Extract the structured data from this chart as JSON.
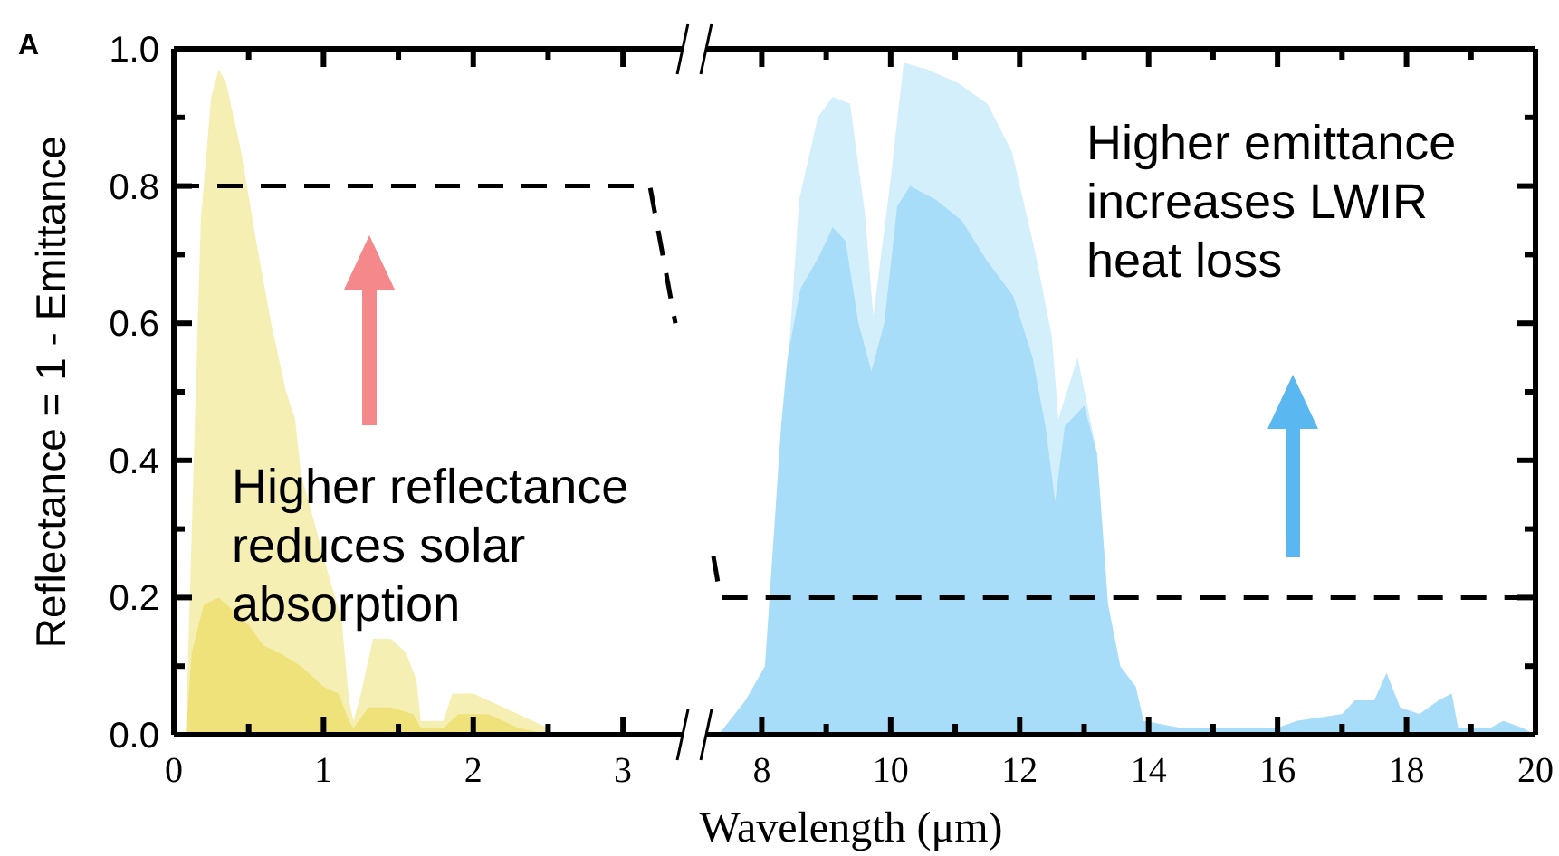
{
  "chart_data": [
    {
      "type": "area",
      "ylabel": "Reflectance = 1 - Emittance",
      "xlim": [
        0,
        3.35
      ],
      "ylim": [
        0,
        1
      ],
      "xticks": [
        0,
        {
          "value": 0.5,
          "label": null
        },
        1,
        {
          "value": 1.5,
          "label": null
        },
        2,
        {
          "value": 2.5,
          "label": null
        },
        3
      ],
      "yticks": [
        {
          "value": 0,
          "label": "0.0"
        },
        {
          "value": 0.1,
          "label": null
        },
        0.2,
        {
          "value": 0.3,
          "label": null
        },
        0.4,
        {
          "value": 0.5,
          "label": null
        },
        0.6,
        {
          "value": 0.7,
          "label": null
        },
        0.8,
        {
          "value": 0.9,
          "label": null
        },
        {
          "value": 1,
          "label": "1.0"
        }
      ],
      "grid": false,
      "annotations": [
        "A",
        "Higher reflectance reduces solar absorption"
      ],
      "series": [
        {
          "color": "#f6efb4",
          "x": [
            0.08,
            0.12,
            0.18,
            0.25,
            0.3,
            0.35,
            0.45,
            0.55,
            0.65,
            0.75,
            0.81,
            0.85,
            0.95,
            1.05,
            1.12,
            1.17,
            1.2,
            1.25,
            1.33,
            1.45,
            1.55,
            1.62,
            1.65,
            1.8,
            1.86,
            2.0,
            2.1,
            2.3,
            2.5,
            2.52
          ],
          "values": [
            0,
            0.3,
            0.75,
            0.93,
            0.97,
            0.95,
            0.85,
            0.72,
            0.6,
            0.5,
            0.46,
            0.38,
            0.3,
            0.22,
            0.17,
            0.05,
            0.02,
            0.06,
            0.14,
            0.14,
            0.12,
            0.08,
            0.02,
            0.02,
            0.06,
            0.06,
            0.05,
            0.03,
            0.01,
            0
          ]
        },
        {
          "color": "#efe27a",
          "x": [
            0.08,
            0.12,
            0.2,
            0.3,
            0.4,
            0.5,
            0.6,
            0.7,
            0.85,
            1.0,
            1.1,
            1.17,
            1.2,
            1.3,
            1.45,
            1.6,
            1.65,
            1.8,
            1.9,
            2.1,
            2.3,
            2.52
          ],
          "values": [
            0,
            0.12,
            0.19,
            0.2,
            0.18,
            0.16,
            0.13,
            0.12,
            0.1,
            0.07,
            0.06,
            0.02,
            0.01,
            0.04,
            0.04,
            0.03,
            0.01,
            0.01,
            0.03,
            0.03,
            0.01,
            0
          ]
        },
        {
          "type": "line",
          "color": "#000000",
          "line_style": "dashed",
          "x": [
            0,
            3.18,
            3.35
          ],
          "values": [
            0.8,
            0.8,
            0.6
          ]
        }
      ]
    },
    {
      "type": "area",
      "xlabel": "Wavelength (μm)",
      "xlim": [
        7.25,
        20
      ],
      "ylim": [
        0,
        1
      ],
      "tick_labels": "x",
      "xticks": [
        8,
        {
          "value": 9,
          "label": null
        },
        10,
        {
          "value": 11,
          "label": null
        },
        12,
        {
          "value": 13,
          "label": null
        },
        14,
        {
          "value": 15,
          "label": null
        },
        16,
        {
          "value": 17,
          "label": null
        },
        18,
        {
          "value": 19,
          "label": null
        },
        20
      ],
      "yticks": [
        {
          "value": 0,
          "label": null
        },
        {
          "value": 0.1,
          "label": null
        },
        {
          "value": 0.2,
          "label": null
        },
        {
          "value": 0.3,
          "label": null
        },
        {
          "value": 0.4,
          "label": null
        },
        {
          "value": 0.5,
          "label": null
        },
        {
          "value": 0.6,
          "label": null
        },
        {
          "value": 0.7,
          "label": null
        },
        {
          "value": 0.8,
          "label": null
        },
        {
          "value": 0.9,
          "label": null
        },
        {
          "value": 1,
          "label": null
        }
      ],
      "grid": false,
      "annotations": [
        "Higher emittance increases LWIR heat loss"
      ],
      "series": [
        {
          "color": "#d4effc",
          "x": [
            7.33,
            7.75,
            8.05,
            8.4,
            8.58,
            8.87,
            9.1,
            9.37,
            9.6,
            9.73,
            10.0,
            10.2,
            10.57,
            11.05,
            11.5,
            11.88,
            12.25,
            12.5,
            12.6,
            12.9,
            13.2,
            13.37,
            13.56,
            13.8,
            13.92,
            14.5,
            16.0,
            16.3,
            17.0,
            17.2,
            17.5,
            17.69,
            17.9,
            18.2,
            18.5,
            18.7,
            18.8,
            19.3,
            19.5,
            19.8,
            20
          ],
          "values": [
            0,
            0.05,
            0.1,
            0.53,
            0.78,
            0.9,
            0.93,
            0.92,
            0.76,
            0.61,
            0.81,
            0.98,
            0.97,
            0.95,
            0.92,
            0.85,
            0.7,
            0.58,
            0.46,
            0.55,
            0.41,
            0.19,
            0.1,
            0.07,
            0.02,
            0.01,
            0.01,
            0.02,
            0.03,
            0.05,
            0.05,
            0.09,
            0.04,
            0.03,
            0.05,
            0.06,
            0.01,
            0.01,
            0.02,
            0.01,
            0
          ]
        },
        {
          "color": "#a8ddf9",
          "x": [
            7.33,
            7.75,
            8.05,
            8.3,
            8.4,
            8.6,
            8.9,
            9.1,
            9.3,
            9.5,
            9.7,
            9.9,
            10.1,
            10.3,
            10.7,
            11.1,
            11.5,
            11.9,
            12.2,
            12.4,
            12.55,
            12.7,
            13.0,
            13.2,
            13.37,
            13.56,
            13.8,
            13.92,
            14.5,
            16.0,
            16.3,
            17.0,
            17.2,
            17.5,
            17.69,
            17.9,
            18.2,
            18.5,
            18.7,
            18.8,
            19.3,
            19.5,
            19.8,
            20
          ],
          "values": [
            0,
            0.05,
            0.1,
            0.45,
            0.55,
            0.65,
            0.7,
            0.74,
            0.72,
            0.6,
            0.53,
            0.6,
            0.77,
            0.8,
            0.78,
            0.75,
            0.69,
            0.64,
            0.55,
            0.45,
            0.34,
            0.45,
            0.48,
            0.41,
            0.19,
            0.1,
            0.07,
            0.02,
            0.01,
            0.01,
            0.02,
            0.03,
            0.05,
            0.05,
            0.09,
            0.04,
            0.03,
            0.05,
            0.06,
            0.01,
            0.01,
            0.02,
            0.01,
            0
          ]
        },
        {
          "type": "line",
          "color": "#000000",
          "line_style": "dashed",
          "x": [
            7.25,
            7.36,
            20
          ],
          "values": [
            0.26,
            0.2,
            0.2
          ]
        }
      ]
    }
  ]
}
